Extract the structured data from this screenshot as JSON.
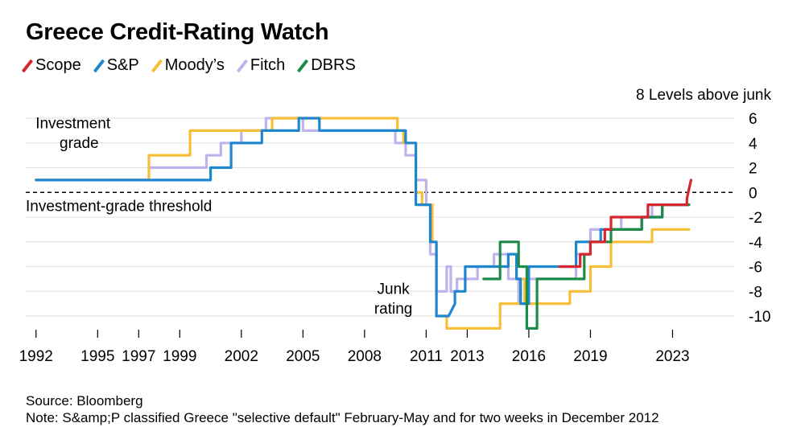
{
  "title": "Greece Credit-Rating Watch",
  "colors": {
    "Scope": "#d6262f",
    "S&P": "#1f86d0",
    "Moody’s": "#f7be38",
    "Fitch": "#bfb3ee",
    "DBRS": "#1d8b48"
  },
  "chart_data": {
    "type": "line",
    "title": "Greece Credit-Rating Watch",
    "ylabel": "8 Levels above junk",
    "ylim": [
      -11,
      7
    ],
    "xlim": [
      1991.5,
      2026
    ],
    "y_ticks": [
      6,
      4,
      2,
      0,
      -2,
      -4,
      -6,
      -8,
      -10
    ],
    "x_ticks": [
      1992,
      1995,
      1997,
      1999,
      2002,
      2005,
      2008,
      2011,
      2013,
      2016,
      2019,
      2023
    ],
    "x_tick_labels": [
      "1992",
      "1995",
      "1997",
      "1999",
      "2002",
      "2005",
      "2008",
      "2011",
      "2013",
      "2016",
      "2019",
      "2023"
    ],
    "threshold": {
      "value": 0,
      "label": "Investment-grade threshold"
    },
    "annotations": [
      {
        "text": "Investment",
        "x": 1993.8,
        "y": 5.2
      },
      {
        "text": "grade",
        "x": 1994.1,
        "y": 3.6
      },
      {
        "text": "Junk",
        "x": 2009.4,
        "y": -8.2
      },
      {
        "text": "rating",
        "x": 2009.4,
        "y": -9.8
      }
    ],
    "series": [
      {
        "name": "Fitch",
        "points": [
          [
            1995.7,
            1
          ],
          [
            1997.5,
            1
          ],
          [
            1997.5,
            2
          ],
          [
            2000.3,
            2
          ],
          [
            2000.3,
            3
          ],
          [
            2001.0,
            3
          ],
          [
            2001.0,
            4
          ],
          [
            2002.0,
            4
          ],
          [
            2002.0,
            5
          ],
          [
            2003.2,
            5
          ],
          [
            2003.2,
            6
          ],
          [
            2005.0,
            6
          ],
          [
            2005.0,
            5
          ],
          [
            2009.5,
            5
          ],
          [
            2009.5,
            4
          ],
          [
            2010.0,
            4
          ],
          [
            2010.0,
            3
          ],
          [
            2010.5,
            3
          ],
          [
            2010.5,
            1
          ],
          [
            2011.0,
            1
          ],
          [
            2011.0,
            -1
          ],
          [
            2011.2,
            -1
          ],
          [
            2011.2,
            -5
          ],
          [
            2011.5,
            -5
          ],
          [
            2011.5,
            -8
          ],
          [
            2012.0,
            -8
          ],
          [
            2012.0,
            -6
          ],
          [
            2012.2,
            -6
          ],
          [
            2012.2,
            -8
          ],
          [
            2012.5,
            -8
          ],
          [
            2012.5,
            -7
          ],
          [
            2013.5,
            -7
          ],
          [
            2013.5,
            -6
          ],
          [
            2014.3,
            -6
          ],
          [
            2014.3,
            -5
          ],
          [
            2015.0,
            -5
          ],
          [
            2015.0,
            -7
          ],
          [
            2015.5,
            -7
          ],
          [
            2015.5,
            -9
          ],
          [
            2016.0,
            -9
          ],
          [
            2016.0,
            -7
          ],
          [
            2018.3,
            -7
          ],
          [
            2018.3,
            -5
          ],
          [
            2019.0,
            -5
          ],
          [
            2019.0,
            -3
          ],
          [
            2020.5,
            -3
          ],
          [
            2020.5,
            -2
          ],
          [
            2022.0,
            -2
          ],
          [
            2022.0,
            -1
          ],
          [
            2023.8,
            -1
          ]
        ]
      },
      {
        "name": "Moody’s",
        "points": [
          [
            1992.0,
            1
          ],
          [
            1997.5,
            1
          ],
          [
            1997.5,
            3
          ],
          [
            1999.5,
            3
          ],
          [
            1999.5,
            5
          ],
          [
            2002.0,
            5
          ],
          [
            2002.0,
            5
          ],
          [
            2003.5,
            5
          ],
          [
            2003.5,
            6
          ],
          [
            2009.6,
            6
          ],
          [
            2009.6,
            5
          ],
          [
            2009.9,
            5
          ],
          [
            2009.9,
            4
          ],
          [
            2010.5,
            4
          ],
          [
            2010.5,
            0
          ],
          [
            2010.8,
            0
          ],
          [
            2010.8,
            -1
          ],
          [
            2011.3,
            -1
          ],
          [
            2011.3,
            -4
          ],
          [
            2011.5,
            -4
          ],
          [
            2011.5,
            -10
          ],
          [
            2012.0,
            -10
          ],
          [
            2012.0,
            -11
          ],
          [
            2014.6,
            -11
          ],
          [
            2014.6,
            -9
          ],
          [
            2015.6,
            -9
          ],
          [
            2015.6,
            -7
          ],
          [
            2015.8,
            -7
          ],
          [
            2015.8,
            -9
          ],
          [
            2018.0,
            -9
          ],
          [
            2018.0,
            -8
          ],
          [
            2019.0,
            -8
          ],
          [
            2019.0,
            -6
          ],
          [
            2020.0,
            -6
          ],
          [
            2020.0,
            -4
          ],
          [
            2022.0,
            -4
          ],
          [
            2022.0,
            -3
          ],
          [
            2023.8,
            -3
          ]
        ]
      },
      {
        "name": "S&P",
        "points": [
          [
            1992.0,
            1
          ],
          [
            2000.5,
            1
          ],
          [
            2000.5,
            2
          ],
          [
            2001.5,
            2
          ],
          [
            2001.5,
            4
          ],
          [
            2003.0,
            4
          ],
          [
            2003.0,
            5
          ],
          [
            2004.8,
            5
          ],
          [
            2004.8,
            6
          ],
          [
            2005.8,
            6
          ],
          [
            2005.8,
            5
          ],
          [
            2010.0,
            5
          ],
          [
            2010.0,
            4
          ],
          [
            2010.5,
            4
          ],
          [
            2010.5,
            -1
          ],
          [
            2011.2,
            -1
          ],
          [
            2011.2,
            -4
          ],
          [
            2011.5,
            -4
          ],
          [
            2011.5,
            -10
          ],
          [
            2012.1,
            -10
          ],
          [
            2012.4,
            -9
          ],
          [
            2012.4,
            -8
          ],
          [
            2012.9,
            -8
          ],
          [
            2012.9,
            -6
          ],
          [
            2015.0,
            -6
          ],
          [
            2015.0,
            -5
          ],
          [
            2015.4,
            -5
          ],
          [
            2015.4,
            -7
          ],
          [
            2015.6,
            -7
          ],
          [
            2015.6,
            -9
          ],
          [
            2016.0,
            -9
          ],
          [
            2016.0,
            -6
          ],
          [
            2018.3,
            -6
          ],
          [
            2018.3,
            -4
          ],
          [
            2019.5,
            -4
          ],
          [
            2019.5,
            -3
          ],
          [
            2021.5,
            -3
          ],
          [
            2021.5,
            -2
          ],
          [
            2022.5,
            -2
          ],
          [
            2022.5,
            -1
          ],
          [
            2023.8,
            -1
          ]
        ]
      },
      {
        "name": "DBRS",
        "points": [
          [
            2013.8,
            -7
          ],
          [
            2014.6,
            -7
          ],
          [
            2014.6,
            -4
          ],
          [
            2015.5,
            -4
          ],
          [
            2015.5,
            -6
          ],
          [
            2015.9,
            -6
          ],
          [
            2015.9,
            -11
          ],
          [
            2016.4,
            -11
          ],
          [
            2016.4,
            -7
          ],
          [
            2018.7,
            -7
          ],
          [
            2018.7,
            -5
          ],
          [
            2019.0,
            -5
          ],
          [
            2019.0,
            -4
          ],
          [
            2020.0,
            -4
          ],
          [
            2020.0,
            -3
          ],
          [
            2021.5,
            -3
          ],
          [
            2021.5,
            -2
          ],
          [
            2022.5,
            -2
          ],
          [
            2022.5,
            -1
          ],
          [
            2023.8,
            -1
          ]
        ]
      },
      {
        "name": "Scope",
        "points": [
          [
            2017.5,
            -6
          ],
          [
            2018.5,
            -6
          ],
          [
            2018.5,
            -5
          ],
          [
            2019.0,
            -5
          ],
          [
            2019.0,
            -4
          ],
          [
            2019.7,
            -4
          ],
          [
            2019.7,
            -3
          ],
          [
            2020.0,
            -3
          ],
          [
            2020.0,
            -2
          ],
          [
            2021.8,
            -2
          ],
          [
            2021.8,
            -1
          ],
          [
            2023.7,
            -1
          ],
          [
            2023.7,
            -0.5
          ],
          [
            2023.9,
            1
          ]
        ]
      }
    ]
  },
  "footer": {
    "source": "Source: Bloomberg",
    "note": "Note: S&amp;P classified Greece \"selective default\" February-May and for two weeks in December 2012"
  }
}
